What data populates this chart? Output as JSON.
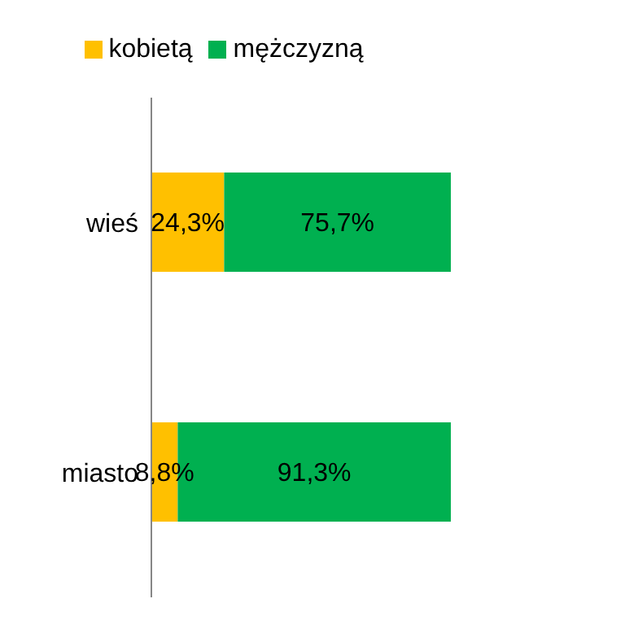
{
  "chart_data": {
    "type": "bar",
    "orientation": "horizontal",
    "stacked": true,
    "categories": [
      "wieś",
      "miasto"
    ],
    "xlim": [
      0,
      100
    ],
    "tick_labels": "y",
    "legend": "top",
    "series": [
      {
        "name": "kobietą",
        "color": "#ffc000",
        "values": [
          24.3,
          8.8
        ],
        "value_labels": [
          "24,3%",
          "8,8%"
        ]
      },
      {
        "name": "mężczyzną",
        "color": "#00b050",
        "values": [
          75.7,
          91.3
        ],
        "value_labels": [
          "75,7%",
          "91,3%"
        ]
      }
    ]
  }
}
